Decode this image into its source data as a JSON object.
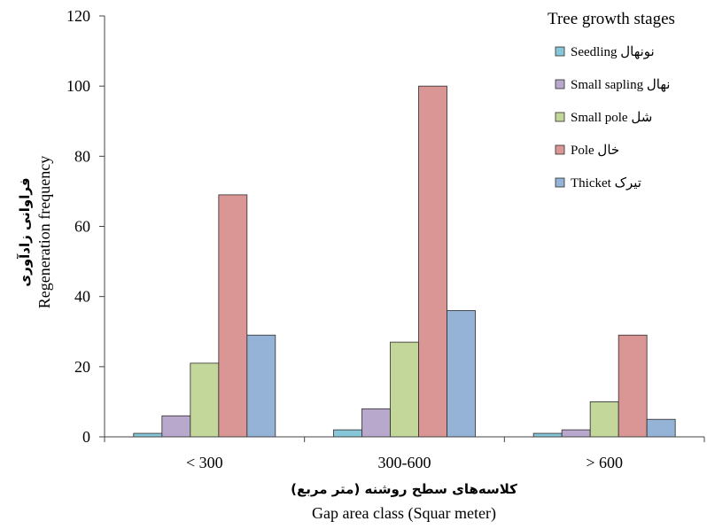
{
  "chart_data": {
    "type": "bar",
    "categories": [
      "< 300",
      "300-600",
      "> 600"
    ],
    "series": [
      {
        "name": "Seedling نونهال",
        "color": "#87c5d8",
        "values": [
          1,
          2,
          1
        ]
      },
      {
        "name": "Small sapling نهال",
        "color": "#b8a9cc",
        "values": [
          6,
          8,
          2
        ]
      },
      {
        "name": "Small pole شل",
        "color": "#c3d79b",
        "values": [
          21,
          27,
          10
        ]
      },
      {
        "name": "Pole خال",
        "color": "#d99694",
        "values": [
          69,
          100,
          29
        ]
      },
      {
        "name": "Thicket تیرک",
        "color": "#95b3d7",
        "values": [
          29,
          36,
          5
        ]
      }
    ],
    "ylim": [
      0,
      120
    ],
    "yticks": [
      0,
      20,
      40,
      60,
      80,
      100,
      120
    ],
    "ylabel": "Regeneration frequency",
    "ylabel_fa": "فراوانی زادآوری",
    "xlabel": "Gap area class (Squar meter)",
    "xlabel_fa": "کلاسه‌های سطح روشنه (متر مربع)",
    "legend_title": "Tree growth stages",
    "legend_position": "top-right",
    "grid": false
  }
}
